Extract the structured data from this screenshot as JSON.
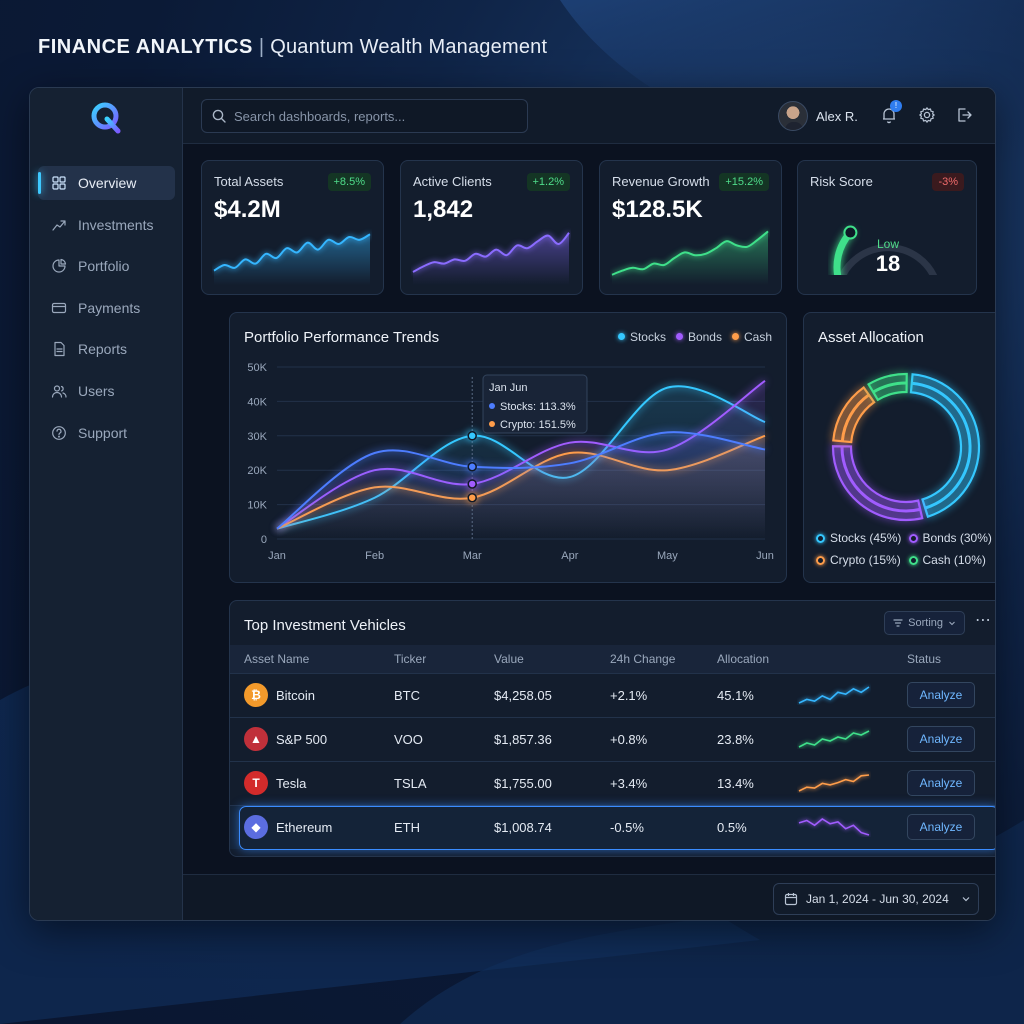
{
  "header": {
    "app_title": "FINANCE ANALYTICS",
    "separator": "|",
    "subtitle": "Quantum Wealth Management"
  },
  "sidebar": {
    "logo_icon": "q-logo-icon",
    "items": [
      {
        "label": "Overview",
        "icon": "grid-icon",
        "active": true
      },
      {
        "label": "Investments",
        "icon": "trend-icon",
        "active": false
      },
      {
        "label": "Portfolio",
        "icon": "pie-icon",
        "active": false
      },
      {
        "label": "Payments",
        "icon": "card-icon",
        "active": false
      },
      {
        "label": "Reports",
        "icon": "document-icon",
        "active": false
      },
      {
        "label": "Users",
        "icon": "users-icon",
        "active": false
      },
      {
        "label": "Support",
        "icon": "help-icon",
        "active": false
      }
    ]
  },
  "topbar": {
    "search_placeholder": "Search dashboards, reports...",
    "user_name": "Alex R.",
    "notification_count": "!"
  },
  "kpis": [
    {
      "title": "Total Assets",
      "value": "$4.2M",
      "change": "+8.5%",
      "trend": "up",
      "color": "#35b6ff"
    },
    {
      "title": "Active Clients",
      "value": "1,842",
      "change": "+1.2%",
      "trend": "up",
      "color": "#8a6cff"
    },
    {
      "title": "Revenue Growth",
      "value": "$128.5K",
      "change": "+15.2%",
      "trend": "up",
      "color": "#3fe08a"
    },
    {
      "title": "Risk Score",
      "value": "18",
      "change": "-3%",
      "trend": "down",
      "level": "Low",
      "gauge_fraction": 0.18
    }
  ],
  "performance": {
    "title": "Portfolio Performance Trends",
    "legend": [
      "Stocks",
      "Bonds",
      "Cash"
    ],
    "tooltip": {
      "title": "Jan Jun",
      "line1": "Stocks: 113.3%",
      "line2": "Crypto: 151.5%"
    }
  },
  "chart_data": {
    "type": "line",
    "title": "Portfolio Performance Trends",
    "x": [
      "Jan",
      "Feb",
      "Mar",
      "Apr",
      "May",
      "Jun"
    ],
    "y_ticks": [
      "0",
      "10K",
      "20K",
      "30K",
      "40K",
      "50K"
    ],
    "ylim": [
      0,
      50000
    ],
    "grid": true,
    "legend_position": "top-right",
    "series": [
      {
        "name": "Stocks",
        "color": "#35c8ff",
        "values": [
          3000,
          12000,
          30000,
          18000,
          44000,
          34000
        ]
      },
      {
        "name": "Bonds",
        "color": "#a15cff",
        "values": [
          3000,
          20000,
          16000,
          28000,
          26000,
          46000
        ]
      },
      {
        "name": "Cash",
        "color": "#ff9d4a",
        "values": [
          3000,
          15000,
          12000,
          25000,
          20000,
          30000
        ]
      },
      {
        "color": "#4d7dff",
        "values": [
          3000,
          25000,
          21000,
          22000,
          31000,
          26000
        ]
      }
    ]
  },
  "allocation": {
    "title": "Asset Allocation",
    "items": [
      {
        "label": "Stocks (45%)",
        "pct": 45,
        "color": "#35c8ff"
      },
      {
        "label": "Bonds (30%)",
        "pct": 30,
        "color": "#a15cff"
      },
      {
        "label": "Crypto (15%)",
        "pct": 15,
        "color": "#ff9d4a"
      },
      {
        "label": "Cash (10%)",
        "pct": 10,
        "color": "#3fe08a"
      }
    ]
  },
  "investments": {
    "title": "Top Investment Vehicles",
    "sort_label": "Sorting",
    "columns": [
      "Asset Name",
      "Ticker",
      "Value",
      "24h Change",
      "Allocation",
      "",
      "Status"
    ],
    "rows": [
      {
        "name": "Bitcoin",
        "ticker": "BTC",
        "value": "$4,258.05",
        "change": "+2.1%",
        "alloc": "45.1%",
        "action": "Analyze",
        "icon": "bitcoin-icon",
        "glyph": "₿",
        "coin_color": "#f39a2b",
        "spark_color": "#35b6ff",
        "spark": [
          3,
          4,
          3.5,
          5,
          4,
          6,
          5.5,
          7,
          6,
          7.5
        ]
      },
      {
        "name": "S&P 500",
        "ticker": "VOO",
        "value": "$1,857.36",
        "change": "+0.8%",
        "alloc": "23.8%",
        "action": "Analyze",
        "icon": "chart-icon",
        "glyph": "▲",
        "coin_color": "#c0303a",
        "spark_color": "#3fe08a",
        "spark": [
          3,
          4,
          3.5,
          5,
          4.5,
          5.5,
          5,
          6.5,
          6,
          7
        ]
      },
      {
        "name": "Tesla",
        "ticker": "TSLA",
        "value": "$1,755.00",
        "change": "+3.4%",
        "alloc": "13.4%",
        "action": "Analyze",
        "icon": "tesla-icon",
        "glyph": "T",
        "coin_color": "#d32b2b",
        "spark_color": "#ff9d4a",
        "spark": [
          3,
          4,
          3.8,
          5,
          4.6,
          5.2,
          6,
          5.5,
          7,
          7.2
        ]
      },
      {
        "name": "Ethereum",
        "ticker": "ETH",
        "value": "$1,008.74",
        "change": "-0.5%",
        "alloc": "0.5%",
        "action": "Analyze",
        "icon": "ethereum-icon",
        "glyph": "◆",
        "coin_color": "#5b6de0",
        "spark_color": "#a15cff",
        "spark": [
          6,
          6.5,
          5.5,
          6.8,
          5.8,
          6.2,
          4.8,
          5.5,
          4,
          3.5
        ],
        "selected": true
      }
    ]
  },
  "footer": {
    "date_range": "Jan 1, 2024 - Jun 30, 2024"
  }
}
